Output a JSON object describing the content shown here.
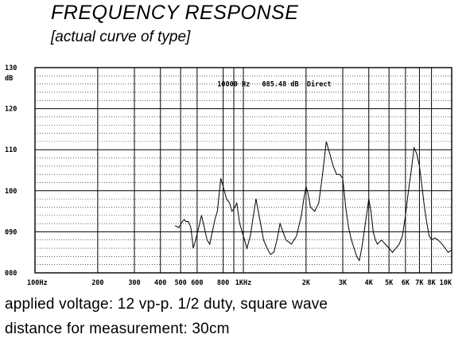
{
  "title": "FREQUENCY  RESPONSE",
  "subtitle": "[actual curve of type]",
  "notes": {
    "line1": "applied voltage: 12 vp-p. 1/2 duty, square wave",
    "line2": "distance for measurement: 30cm"
  },
  "chart_data": {
    "type": "line",
    "title": "",
    "xlabel": "",
    "ylabel": "dB",
    "x_scale": "log",
    "xlim": [
      100,
      10000
    ],
    "ylim": [
      80,
      130
    ],
    "grid": true,
    "readout": "10000 Hz   085.48 dB  Direct",
    "x_ticks": [
      {
        "value": 100,
        "label": "100Hz"
      },
      {
        "value": 200,
        "label": "200"
      },
      {
        "value": 300,
        "label": "300"
      },
      {
        "value": 400,
        "label": "400"
      },
      {
        "value": 500,
        "label": "500"
      },
      {
        "value": 600,
        "label": "600"
      },
      {
        "value": 800,
        "label": "800"
      },
      {
        "value": 1000,
        "label": "1KHz"
      },
      {
        "value": 2000,
        "label": "2K"
      },
      {
        "value": 3000,
        "label": "3K"
      },
      {
        "value": 4000,
        "label": "4K"
      },
      {
        "value": 5000,
        "label": "5K"
      },
      {
        "value": 6000,
        "label": "6K"
      },
      {
        "value": 7000,
        "label": "7K"
      },
      {
        "value": 8000,
        "label": "8K"
      },
      {
        "value": 10000,
        "label": "10K"
      }
    ],
    "y_ticks": [
      {
        "value": 80,
        "label": "080"
      },
      {
        "value": 90,
        "label": "090"
      },
      {
        "value": 100,
        "label": "100"
      },
      {
        "value": 110,
        "label": "110"
      },
      {
        "value": 120,
        "label": "120"
      },
      {
        "value": 130,
        "label": "130"
      }
    ],
    "series": [
      {
        "x": [
          470,
          490,
          510,
          520,
          530,
          545,
          560,
          575,
          590,
          610,
          630,
          650,
          670,
          690,
          710,
          730,
          750,
          780,
          800,
          830,
          860,
          880,
          900,
          930,
          960,
          1000,
          1040,
          1080,
          1110,
          1150,
          1200,
          1250,
          1300,
          1350,
          1400,
          1450,
          1500,
          1550,
          1600,
          1700,
          1800,
          1900,
          1950,
          2000,
          2050,
          2100,
          2200,
          2300,
          2400,
          2500,
          2600,
          2700,
          2800,
          2900,
          3000,
          3100,
          3200,
          3300,
          3400,
          3500,
          3600,
          3700,
          3800,
          3900,
          4000,
          4100,
          4200,
          4300,
          4400,
          4600,
          4800,
          5000,
          5200,
          5400,
          5600,
          5800,
          6000,
          6200,
          6400,
          6600,
          6800,
          7000,
          7200,
          7400,
          7600,
          7800,
          8000,
          8300,
          8600,
          9000,
          9300,
          9600,
          10000
        ],
        "y": [
          91.5,
          91,
          92.5,
          93,
          92.5,
          92.5,
          91,
          86,
          88,
          91,
          94,
          91,
          88,
          87,
          90,
          93,
          95,
          103,
          101,
          98,
          97,
          95,
          95.5,
          97,
          92,
          89,
          86,
          89,
          93,
          98,
          93,
          88,
          86,
          84.5,
          85,
          88,
          92,
          90,
          88,
          87,
          89,
          94,
          98,
          101,
          99,
          96,
          95,
          97,
          104,
          112,
          109,
          106,
          104,
          104,
          103,
          96,
          91,
          88,
          86,
          84,
          83,
          86,
          90,
          94,
          98,
          95,
          90,
          88,
          87,
          88,
          87,
          86,
          85,
          86,
          87,
          89,
          94,
          100,
          105,
          110.5,
          109,
          106,
          101,
          96,
          92,
          89,
          88,
          88.5,
          88,
          87,
          86,
          85,
          85.5
        ]
      }
    ]
  }
}
